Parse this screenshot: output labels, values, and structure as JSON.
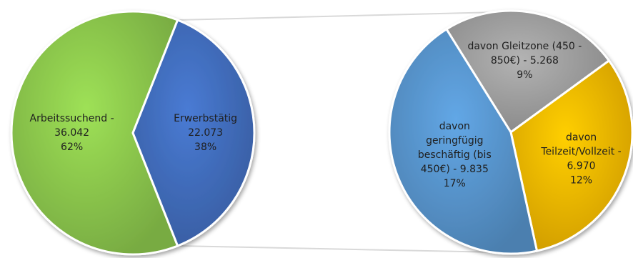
{
  "chart_data": {
    "type": "pie",
    "subtype": "pie-of-pie",
    "title": "",
    "main_pie": {
      "slices": [
        {
          "key": "arbeitssuchend",
          "value": 36042,
          "percent": 62,
          "color": "#92d050",
          "label_lines": [
            "Arbeitssuchend -",
            "36.042",
            "62%"
          ]
        },
        {
          "key": "erwerbstaetig",
          "value": 22073,
          "percent": 38,
          "color": "#4472c4",
          "label_lines": [
            "Erwerbstätig",
            "22.073",
            "38%"
          ]
        }
      ]
    },
    "secondary_pie": {
      "source_slice": "erwerbstaetig",
      "slices": [
        {
          "key": "gleitzone",
          "value": 5268,
          "percent": 9,
          "color": "#a6a6a6",
          "label_lines": [
            "davon Gleitzone (450 -",
            "850€) - 5.268",
            "9%"
          ]
        },
        {
          "key": "teilzeit",
          "value": 6970,
          "percent": 12,
          "color": "#ffc000",
          "label_lines": [
            "davon",
            "Teilzeit/Vollzeit -",
            "6.970",
            "12%"
          ]
        },
        {
          "key": "geringfuegig",
          "value": 9835,
          "percent": 17,
          "color": "#5b9bd5",
          "label_lines": [
            "davon",
            "geringfügig",
            "beschäftig (bis",
            "450€) - 9.835",
            "17%"
          ]
        }
      ]
    },
    "legend": "none"
  }
}
